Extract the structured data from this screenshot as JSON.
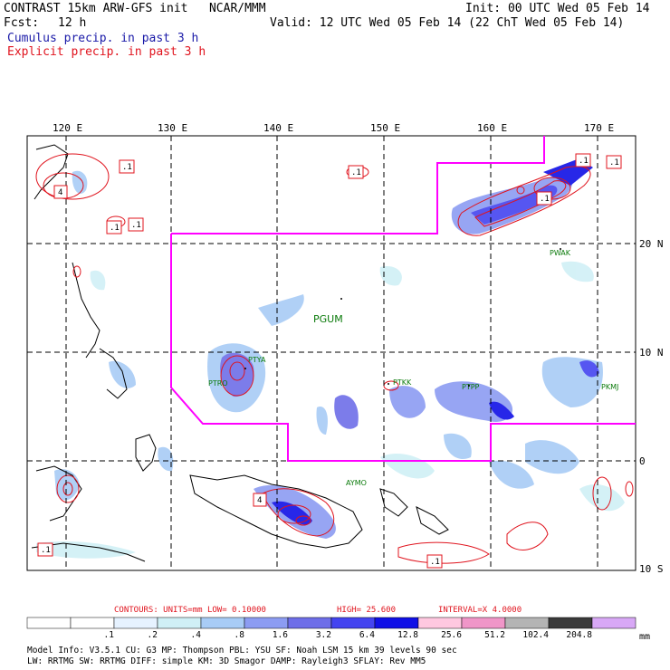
{
  "header": {
    "title": "CONTRAST 15km ARW-GFS init   NCAR/MMM",
    "init": "Init: 00 UTC Wed 05 Feb 14",
    "fcst_label": "Fcst:",
    "fcst_value": "12 h",
    "valid": "Valid: 12 UTC Wed 05 Feb 14 (22 ChT Wed 05 Feb 14)",
    "cumulus": "Cumulus precip. in past 3 h",
    "explicit": "Explicit precip. in past 3 h"
  },
  "axes": {
    "lon_labels": [
      "120 E",
      "130 E",
      "140 E",
      "150 E",
      "160 E",
      "170 E"
    ],
    "lat_labels": [
      "20 N",
      "10 N",
      "0",
      "10 S"
    ]
  },
  "stations": [
    "PWAK",
    "PGUM",
    "PTYA",
    "PTRO",
    "PTKK",
    "PTPP",
    "PKMJ",
    "AYMO"
  ],
  "contour_labels": [
    ".1",
    ".1",
    ".1",
    ".1",
    ".1",
    ".1",
    ".1",
    ".1",
    "4",
    "4",
    ".1"
  ],
  "contours_line": {
    "prefix": "CONTOURS:  UNITS=mm  LOW= 0.10000",
    "high": "HIGH=  25.600",
    "interval": "INTERVAL=X  4.0000"
  },
  "colorbar": {
    "unit": "mm",
    "labels": [
      ".1",
      ".2",
      ".4",
      ".8",
      "1.6",
      "3.2",
      "6.4",
      "12.8",
      "25.6",
      "51.2",
      "102.4",
      "204.8"
    ],
    "colors": [
      "#ffffff",
      "#ffffff",
      "#e6f2ff",
      "#d0f0f6",
      "#a8ccf6",
      "#8c9cf2",
      "#6e6ee8",
      "#4444f0",
      "#1010e6",
      "#ffc8e0",
      "#f096c8",
      "#b4b4b4",
      "#3a3a3a",
      "#d8a8f6"
    ]
  },
  "model_info": {
    "line1": "Model Info: V3.5.1    CU: G3      MP: Thompson    PBL: YSU      SF: Noah LSM    15 km   39 levels   90 sec",
    "line2": "            LW: RRTMG   SW: RRTMG  DIFF: simple KM: 3D Smagor DAMP: Rayleigh3  SFLAY: Rev MM5"
  }
}
